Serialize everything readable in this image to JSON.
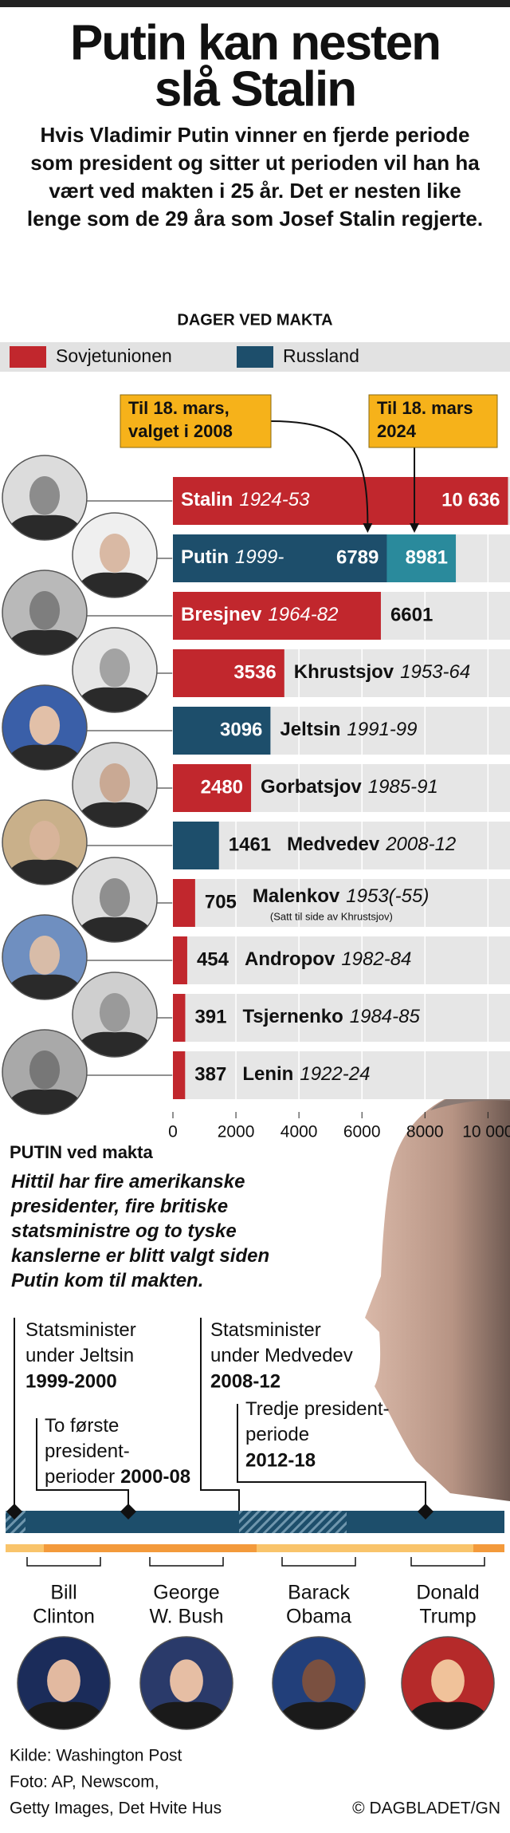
{
  "header": {
    "title": [
      "Putin kan nesten",
      "slå Stalin"
    ],
    "intro": "Hvis Vladimir Putin vinner en fjerde periode som president og sitter ut perioden vil han ha vært ved makten i 25 år. Det er nesten like lenge som de 29 åra som Josef Stalin regjerte."
  },
  "chart_data": {
    "type": "bar",
    "orientation": "horizontal",
    "title": "DAGER VED MAKTA",
    "legend": [
      {
        "name": "Sovjetunionen",
        "color": "#c1272d"
      },
      {
        "name": "Russland",
        "color": "#1d4e6b"
      }
    ],
    "categories": [
      "Stalin",
      "Putin",
      "Bresjnev",
      "Khrustsjov",
      "Jeltsin",
      "Gorbatsjov",
      "Medvedev",
      "Malenkov",
      "Andropov",
      "Tsjernenko",
      "Lenin"
    ],
    "periods": [
      "1924-53",
      "1999-",
      "1964-82",
      "1953-64",
      "1991-99",
      "1985-91",
      "2008-12",
      "1953(-55)",
      "1982-84",
      "1984-85",
      "1922-24"
    ],
    "notes": [
      null,
      null,
      null,
      null,
      null,
      null,
      null,
      "(Satt til side av Khrustsjov)",
      null,
      null,
      null
    ],
    "values": [
      10636,
      6789,
      6601,
      3536,
      3096,
      2480,
      1461,
      705,
      454,
      391,
      387
    ],
    "value_labels": [
      "10 636",
      "6789",
      "6601",
      "3536",
      "3096",
      "2480",
      "1461",
      "705",
      "454",
      "391",
      "387"
    ],
    "colors": [
      "#c1272d",
      "#1d4e6b",
      "#c1272d",
      "#c1272d",
      "#1d4e6b",
      "#c1272d",
      "#1d4e6b",
      "#c1272d",
      "#c1272d",
      "#c1272d",
      "#c1272d"
    ],
    "projected_values": [
      null,
      8981,
      null,
      null,
      null,
      null,
      null,
      null,
      null,
      null,
      null
    ],
    "projected_color": "#2a8a9c",
    "annotations": [
      {
        "text": [
          "Til 18. mars,",
          "valget i 2008"
        ]
      },
      {
        "text": [
          "Til 18. mars",
          "2024"
        ]
      }
    ],
    "xlim": [
      0,
      10700
    ],
    "xticks": [
      0,
      2000,
      4000,
      6000,
      8000,
      {
        "value": 10000,
        "label": "10 000"
      }
    ],
    "grid": true
  },
  "putin_section": {
    "heading": "PUTIN ved makta",
    "text": "Hittil har fire amerikanske presidenter, fire britiske statsministre og to tyske kanslerne er blitt valgt siden Putin kom til makten.",
    "periods": [
      {
        "label": [
          "Statsminister",
          "under Jeltsin"
        ],
        "years": "1999-2000"
      },
      {
        "label": [
          "To første",
          "president-",
          "perioder"
        ],
        "years": "2000-08"
      },
      {
        "label": [
          "Statsminister",
          "under Medvedev"
        ],
        "years": "2008-12"
      },
      {
        "label": [
          "Tredje president-",
          "periode"
        ],
        "years": "2012-18"
      }
    ],
    "presidents": [
      [
        "Bill",
        "Clinton"
      ],
      [
        "George",
        "W. Bush"
      ],
      [
        "Barack",
        "Obama"
      ],
      [
        "Donald",
        "Trump"
      ]
    ]
  },
  "footer": {
    "source": [
      "Kilde: Washington Post",
      "Foto: AP, Newscom,",
      "Getty Images, Det Hvite Hus"
    ],
    "credit": "© DAGBLADET/GN"
  }
}
